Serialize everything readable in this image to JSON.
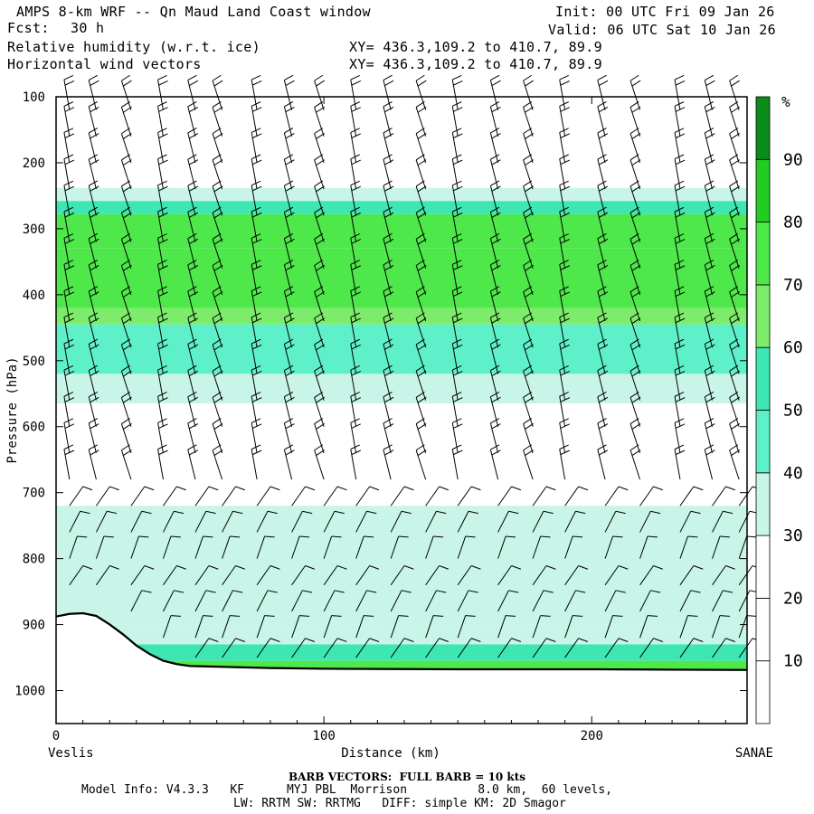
{
  "header": {
    "title": "AMPS 8-km WRF -- Qn Maud Land Coast window",
    "fcst_label": "Fcst:",
    "fcst_value": "30 h",
    "field1": "Relative humidity (w.r.t. ice)",
    "field2": "Horizontal wind vectors",
    "init": "Init: 00 UTC Fri 09 Jan 26",
    "valid": "Valid: 06 UTC Sat 10 Jan 26",
    "xy1": "XY= 436.3,109.2 to 410.7, 89.9",
    "xy2": "XY= 436.3,109.2 to 410.7, 89.9"
  },
  "footer": {
    "barb_note": "BARB VECTORS:  FULL BARB = 10 kts",
    "model_line1": "Model Info: V4.3.3   KF      MYJ PBL  Morrison          8.0 km,  60 levels,",
    "model_line2": "LW: RRTM SW: RRTMG   DIFF: simple KM: 2D Smagor"
  },
  "chart_data": {
    "type": "heatmap",
    "title": "Relative humidity (w.r.t. ice) cross section with horizontal wind vectors",
    "xlabel": "Distance (km)",
    "ylabel": "Pressure (hPa)",
    "x_range": [
      0,
      258
    ],
    "y_range": [
      100,
      1050
    ],
    "x_ticks": [
      0,
      100,
      200
    ],
    "y_ticks": [
      100,
      200,
      300,
      400,
      500,
      600,
      700,
      800,
      900,
      1000
    ],
    "x_start_label": "Veslis",
    "x_end_label": "SANAE",
    "colorbar": {
      "unit": "%",
      "levels": [
        10,
        20,
        30,
        40,
        50,
        60,
        70,
        80,
        90
      ],
      "colors": [
        "#ffffff",
        "#ffffff",
        "#ffffff",
        "#c8f5e8",
        "#5ef0c8",
        "#3ee6b4",
        "#7cec6a",
        "#4ee84a",
        "#22cc22",
        "#0a8c1a"
      ]
    },
    "rh_bands": [
      {
        "p_top": 100,
        "p_bot": 238,
        "rh": 5
      },
      {
        "p_top": 238,
        "p_bot": 258,
        "rh": 35
      },
      {
        "p_top": 258,
        "p_bot": 278,
        "rh": 55
      },
      {
        "p_top": 278,
        "p_bot": 330,
        "rh": 75
      },
      {
        "p_top": 330,
        "p_bot": 420,
        "rh": 72
      },
      {
        "p_top": 420,
        "p_bot": 445,
        "rh": 65
      },
      {
        "p_top": 445,
        "p_bot": 520,
        "rh": 48
      },
      {
        "p_top": 520,
        "p_bot": 565,
        "rh": 35
      },
      {
        "p_top": 565,
        "p_bot": 720,
        "rh": 15
      },
      {
        "p_top": 720,
        "p_bot": 900,
        "rh": 35
      },
      {
        "p_top": 900,
        "p_bot": 930,
        "rh": 32
      },
      {
        "p_top": 930,
        "p_bot": 955,
        "rh": 55
      },
      {
        "p_top": 955,
        "p_bot": 970,
        "rh": 72
      }
    ],
    "terrain": {
      "distance_km": [
        0,
        5,
        10,
        15,
        20,
        25,
        30,
        35,
        40,
        45,
        50,
        60,
        80,
        100,
        150,
        200,
        258
      ],
      "pressure_hPa": [
        888,
        884,
        883,
        887,
        900,
        915,
        932,
        945,
        955,
        960,
        963,
        964,
        966,
        967,
        968,
        968,
        969
      ]
    },
    "barb_columns_km": [
      5,
      15,
      28,
      40,
      52,
      62,
      75,
      88,
      100,
      112,
      125,
      138,
      150,
      165,
      178,
      190,
      205,
      218,
      233,
      245,
      255
    ],
    "barb_levels_hPa": [
      120,
      160,
      200,
      240,
      280,
      320,
      360,
      400,
      440,
      480,
      520,
      560,
      600,
      640,
      680,
      720,
      760,
      800,
      840,
      880,
      920,
      950
    ]
  }
}
